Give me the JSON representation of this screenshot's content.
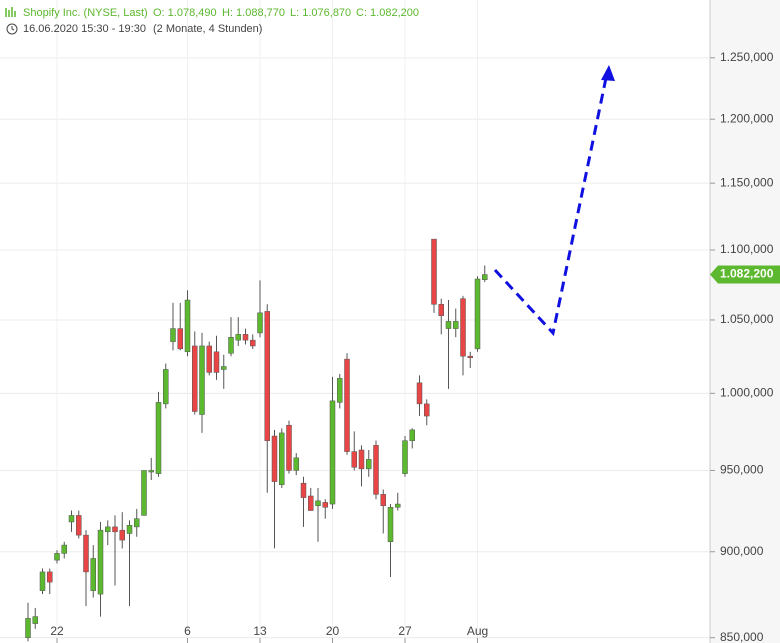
{
  "header": {
    "title": "Shopify Inc. (NYSE, Last)",
    "open": "O: 1.078,490",
    "high": "H: 1.088,770",
    "low": "L: 1.076,870",
    "close": "C: 1.082,200",
    "period": "16.06.2020 15:30 - 19:30",
    "span": "(2 Monate, 4 Stunden)"
  },
  "chart_data": {
    "type": "candlestick",
    "categories": [
      null,
      null,
      null,
      null,
      "22",
      null,
      null,
      null,
      null,
      null,
      null,
      null,
      null,
      null,
      null,
      null,
      null,
      null,
      null,
      null,
      null,
      null,
      "6",
      null,
      null,
      null,
      null,
      null,
      null,
      null,
      null,
      null,
      "13",
      null,
      null,
      null,
      null,
      null,
      null,
      null,
      null,
      null,
      "20",
      null,
      null,
      null,
      null,
      null,
      null,
      null,
      null,
      null,
      "27",
      null,
      null,
      null,
      null,
      null,
      null,
      null,
      null,
      null,
      "Aug",
      null
    ],
    "open": [
      850000,
      858000,
      877000,
      888000,
      895000,
      899000,
      918000,
      922000,
      910000,
      877000,
      875000,
      912000,
      915000,
      913000,
      911000,
      915000,
      922000,
      949000,
      948000,
      993000,
      1035000,
      1044000,
      1028000,
      1032000,
      986000,
      1032000,
      1028000,
      1016000,
      1027000,
      1036000,
      1040000,
      1036000,
      1041000,
      1056000,
      972000,
      941000,
      979000,
      950000,
      942000,
      934000,
      928000,
      930000,
      929000,
      994000,
      1023000,
      962000,
      963000,
      951000,
      966000,
      935000,
      906000,
      927000,
      948000,
      969000,
      1007000,
      993000,
      1108000,
      1061000,
      1044000,
      1044000,
      1065000,
      1025000,
      1030000,
      1078490
    ],
    "high": [
      870000,
      867000,
      890000,
      890000,
      901000,
      906000,
      925000,
      925000,
      913000,
      904000,
      918000,
      919000,
      922000,
      924000,
      919000,
      926000,
      950000,
      958000,
      1001000,
      1020000,
      1062000,
      1062000,
      1071000,
      1042000,
      1041000,
      1035000,
      1039000,
      1026000,
      1052000,
      1052000,
      1044000,
      1040000,
      1078000,
      1061000,
      976000,
      977000,
      982000,
      961000,
      946000,
      939000,
      939000,
      932000,
      1011000,
      1013000,
      1027000,
      975000,
      966000,
      963000,
      969000,
      938000,
      929000,
      936000,
      972000,
      977000,
      1012000,
      996000,
      1108000,
      1065000,
      1064000,
      1058000,
      1067000,
      1028000,
      1081000,
      1088770
    ],
    "low": [
      848000,
      855000,
      875000,
      875000,
      893000,
      896000,
      912000,
      908000,
      868000,
      873000,
      862000,
      904000,
      880000,
      902000,
      868000,
      909000,
      922000,
      944000,
      946000,
      990000,
      1029000,
      1029000,
      1025000,
      986000,
      974000,
      1012000,
      1009000,
      1003000,
      1025000,
      1032000,
      1033000,
      1030000,
      1038000,
      936000,
      902000,
      939000,
      948000,
      947000,
      915000,
      925000,
      906000,
      920000,
      926000,
      990000,
      960000,
      950000,
      940000,
      946000,
      932000,
      911000,
      885000,
      925000,
      946000,
      964000,
      985000,
      979000,
      1055000,
      1040000,
      1003000,
      1038000,
      1012000,
      1017000,
      1028000,
      1076870
    ],
    "close": [
      861000,
      862000,
      888000,
      882000,
      899000,
      904000,
      922000,
      910000,
      888000,
      896000,
      913000,
      915000,
      912000,
      907000,
      916000,
      920000,
      950000,
      950000,
      994000,
      1016000,
      1044000,
      1030000,
      1064000,
      988000,
      1032000,
      1014000,
      1014000,
      1018000,
      1038000,
      1040000,
      1036000,
      1032000,
      1055000,
      969000,
      943000,
      974000,
      950000,
      958000,
      933000,
      925000,
      931000,
      927000,
      995000,
      1010000,
      962000,
      952000,
      951000,
      957000,
      935000,
      928000,
      927000,
      929000,
      969000,
      976000,
      993000,
      985000,
      1061000,
      1053000,
      1049000,
      1049000,
      1025000,
      1024000,
      1079000,
      1082200
    ],
    "up_color": "#5cb82e",
    "down_color": "#e84646",
    "log_scale": true,
    "grid": true,
    "ylim": [
      847000,
      1299000
    ],
    "yticks": [
      {
        "value": 850000,
        "label": "850,000"
      },
      {
        "value": 900000,
        "label": "900,000"
      },
      {
        "value": 950000,
        "label": "950,000"
      },
      {
        "value": 1000000,
        "label": "1.000,000"
      },
      {
        "value": 1050000,
        "label": "1.050,000"
      },
      {
        "value": 1100000,
        "label": "1.100,000"
      },
      {
        "value": 1150000,
        "label": "1.150,000"
      },
      {
        "value": 1200000,
        "label": "1.200,000"
      },
      {
        "value": 1250000,
        "label": "1.250,000"
      }
    ],
    "last_price": {
      "value": 1082200,
      "label": "1.082,200"
    }
  }
}
